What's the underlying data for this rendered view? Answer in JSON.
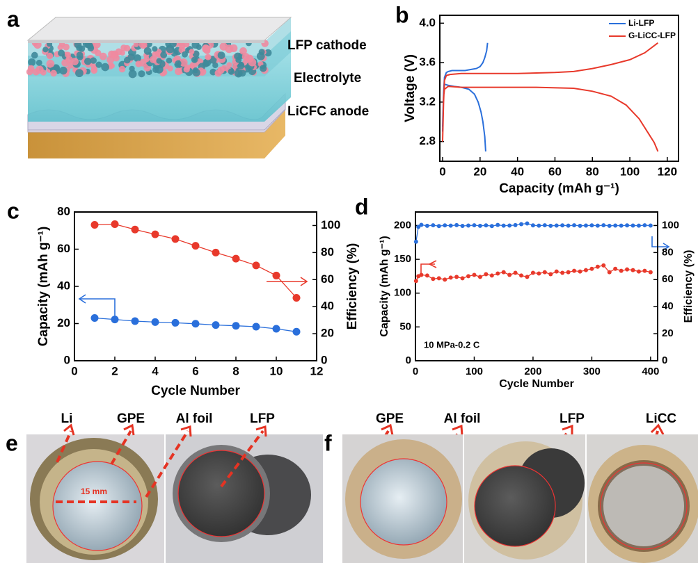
{
  "panel_labels": [
    "a",
    "b",
    "c",
    "d",
    "e",
    "f"
  ],
  "schematic": {
    "labels": [
      "LFP cathode",
      "Electrolyte",
      "LiCFC anode"
    ]
  },
  "chart_data": [
    {
      "type": "line",
      "xlabel": "Capacity (mAh g⁻¹)",
      "ylabel": "Voltage (V)",
      "xlim": [
        -1.5,
        126
      ],
      "xticks": [
        0,
        20,
        40,
        60,
        80,
        100,
        120
      ],
      "ylim": [
        2.6,
        4.08
      ],
      "yticks": [
        2.8,
        3.2,
        3.6,
        {
          "value": 4,
          "label": "4.0"
        }
      ],
      "legend": "upper right",
      "series": [
        {
          "name": "Li-LFP",
          "color": "#2a6fdb",
          "x": [
            0,
            0.5,
            1,
            2,
            3,
            5,
            8,
            12,
            15,
            18,
            20,
            21.5,
            22.5,
            23.5,
            24,
            null,
            0,
            0.5,
            1,
            3,
            6,
            10,
            14,
            17,
            19,
            20.5,
            21.5,
            22.5,
            23
          ],
          "values": [
            2.9,
            3.3,
            3.45,
            3.5,
            3.51,
            3.52,
            3.52,
            3.52,
            3.53,
            3.54,
            3.56,
            3.6,
            3.65,
            3.72,
            3.8,
            null,
            2.95,
            3.3,
            3.38,
            3.37,
            3.36,
            3.35,
            3.33,
            3.28,
            3.2,
            3.1,
            3.0,
            2.85,
            2.7
          ]
        },
        {
          "name": "G-LiCC-LFP",
          "color": "#e8392b",
          "x": [
            0,
            0.5,
            1,
            2,
            4,
            10,
            20,
            40,
            60,
            70,
            80,
            90,
            100,
            108,
            115,
            null,
            0,
            0.5,
            1,
            3,
            10,
            30,
            50,
            70,
            80,
            90,
            98,
            105,
            110,
            113,
            115
          ],
          "values": [
            2.8,
            3.2,
            3.42,
            3.47,
            3.48,
            3.49,
            3.49,
            3.49,
            3.5,
            3.51,
            3.54,
            3.58,
            3.63,
            3.7,
            3.8,
            null,
            2.8,
            3.25,
            3.33,
            3.36,
            3.35,
            3.35,
            3.35,
            3.34,
            3.31,
            3.26,
            3.17,
            3.03,
            2.88,
            2.79,
            2.7
          ]
        }
      ]
    },
    {
      "type": "line",
      "xlabel": "Cycle Number",
      "ylabel": "Capacity (mAh g⁻¹)",
      "y2label": "Efficiency (%)",
      "xlim": [
        0,
        12
      ],
      "xticks": [
        0,
        2,
        4,
        6,
        8,
        10,
        12
      ],
      "ylim": [
        0,
        80
      ],
      "yticks": [
        0,
        20,
        40,
        60,
        80
      ],
      "y2lim": [
        0,
        110
      ],
      "y2ticks": [
        0,
        20,
        40,
        60,
        80,
        100
      ],
      "markers": true,
      "x": [
        1,
        2,
        3,
        4,
        5,
        6,
        7,
        8,
        9,
        10,
        11
      ],
      "series": [
        {
          "color": "#2a6fdb",
          "values": [
            23,
            22.2,
            21.3,
            20.8,
            20.4,
            19.9,
            19.2,
            18.8,
            18.3,
            17.2,
            15.6
          ]
        },
        {
          "color": "#e8392b",
          "axis": "y2",
          "values": [
            100.5,
            101,
            97,
            93.5,
            90,
            85,
            80,
            75.5,
            70.5,
            63,
            46.5
          ]
        }
      ]
    },
    {
      "type": "line",
      "xlabel": "Cycle Number",
      "ylabel": "Capacity (mAh g⁻¹)",
      "y2label": "Efficiency (%)",
      "annotation": "10 MPa-0.2 C",
      "xlim": [
        0,
        412
      ],
      "xticks": [
        0,
        100,
        200,
        300,
        400
      ],
      "ylim": [
        0,
        220
      ],
      "yticks": [
        0,
        50,
        100,
        150,
        200
      ],
      "y2lim": [
        0,
        110
      ],
      "y2ticks": [
        0,
        20,
        40,
        60,
        80,
        100
      ],
      "markers": true,
      "x": [
        1,
        5,
        10,
        20,
        30,
        40,
        50,
        60,
        70,
        80,
        90,
        100,
        110,
        120,
        130,
        140,
        150,
        160,
        170,
        180,
        190,
        200,
        210,
        220,
        230,
        240,
        250,
        260,
        270,
        280,
        290,
        300,
        310,
        320,
        330,
        340,
        350,
        360,
        370,
        380,
        390,
        400
      ],
      "series": [
        {
          "color": "#2a6fdb",
          "axis": "y2",
          "values": [
            88,
            99,
            100.5,
            99.8,
            100.2,
            99.6,
            100.1,
            99.9,
            100.3,
            99.7,
            100,
            100.2,
            99.8,
            100.1,
            99.6,
            100.4,
            99.9,
            100,
            100.3,
            101,
            101.5,
            100.1,
            99.9,
            100.2,
            99.8,
            100,
            100.1,
            99.9,
            100.2,
            99.8,
            100,
            100.1,
            99.9,
            100.2,
            99.8,
            100,
            99.9,
            100.1,
            100,
            99.9,
            100.2,
            100
          ]
        },
        {
          "color": "#e8392b",
          "values": [
            118,
            125,
            127,
            126,
            121,
            122,
            120,
            123,
            124,
            122,
            125,
            127,
            124,
            128,
            126,
            129,
            131,
            127,
            130,
            126,
            124,
            130,
            129,
            131,
            128,
            132,
            130,
            131,
            133,
            132,
            134,
            136,
            139,
            141,
            131,
            136,
            133,
            135,
            134,
            132,
            133,
            131
          ]
        }
      ]
    }
  ],
  "photos": {
    "e": {
      "labels": [
        "Li",
        "GPE",
        "Al foil",
        "LFP"
      ],
      "scale": "15 mm"
    },
    "f": {
      "labels": [
        "GPE",
        "Al foil",
        "LFP",
        "LiCC"
      ]
    }
  }
}
